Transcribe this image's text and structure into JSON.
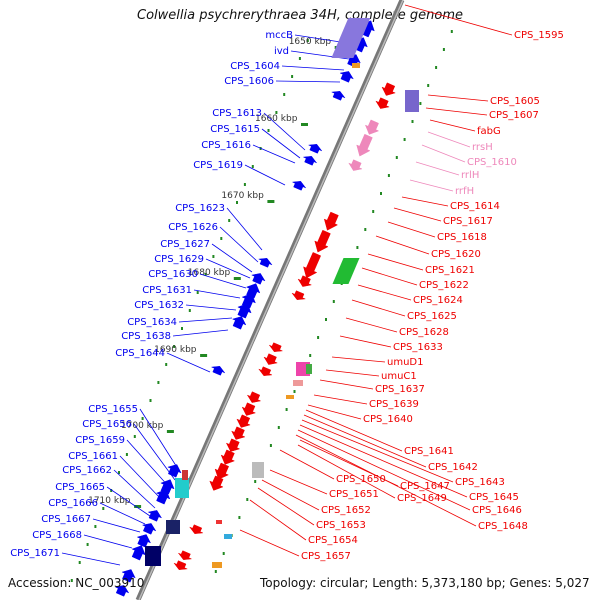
{
  "title": "Colwellia psychrerythraea 34H, complete genome",
  "accession": "Accession: NC_003910",
  "summary": "Topology: circular; Length: 5,373,180 bp; Genes: 5,027",
  "colors": {
    "plus_strand": "#0000ee",
    "minus_strand": "#ee0000",
    "rna": "#ee88bb",
    "kbp_marker": "#228822",
    "backbone": "#888888"
  },
  "kbp_labels": [
    "1650 kbp",
    "1660 kbp",
    "1670 kbp",
    "1680 kbp",
    "1690 kbp",
    "1700 kbp",
    "1710 kbp"
  ],
  "left_genes": [
    "mccB",
    "ivd",
    "CPS_1604",
    "CPS_1606",
    "CPS_1613",
    "CPS_1615",
    "CPS_1616",
    "CPS_1619",
    "CPS_1623",
    "CPS_1626",
    "CPS_1627",
    "CPS_1629",
    "CPS_1630",
    "CPS_1631",
    "CPS_1632",
    "CPS_1634",
    "CPS_1638",
    "CPS_1644",
    "CPS_1655",
    "CPS_1656",
    "CPS_1659",
    "CPS_1661",
    "CPS_1662",
    "CPS_1665",
    "CPS_1666",
    "CPS_1667",
    "CPS_1668",
    "CPS_1671"
  ],
  "right_genes": [
    {
      "name": "CPS_1595",
      "rna": false
    },
    {
      "name": "CPS_1605",
      "rna": false
    },
    {
      "name": "CPS_1607",
      "rna": false
    },
    {
      "name": "fabG",
      "rna": false
    },
    {
      "name": "rrsH",
      "rna": true
    },
    {
      "name": "CPS_1610",
      "rna": true
    },
    {
      "name": "rrlH",
      "rna": true
    },
    {
      "name": "rrfH",
      "rna": true
    },
    {
      "name": "CPS_1614",
      "rna": false
    },
    {
      "name": "CPS_1617",
      "rna": false
    },
    {
      "name": "CPS_1618",
      "rna": false
    },
    {
      "name": "CPS_1620",
      "rna": false
    },
    {
      "name": "CPS_1621",
      "rna": false
    },
    {
      "name": "CPS_1622",
      "rna": false
    },
    {
      "name": "CPS_1624",
      "rna": false
    },
    {
      "name": "CPS_1625",
      "rna": false
    },
    {
      "name": "CPS_1628",
      "rna": false
    },
    {
      "name": "CPS_1633",
      "rna": false
    },
    {
      "name": "umuD1",
      "rna": false
    },
    {
      "name": "umuC1",
      "rna": false
    },
    {
      "name": "CPS_1637",
      "rna": false
    },
    {
      "name": "CPS_1639",
      "rna": false
    },
    {
      "name": "CPS_1640",
      "rna": false
    },
    {
      "name": "CPS_1641",
      "rna": false
    },
    {
      "name": "CPS_1642",
      "rna": false
    },
    {
      "name": "CPS_1643",
      "rna": false
    },
    {
      "name": "CPS_1645",
      "rna": false
    },
    {
      "name": "CPS_1646",
      "rna": false
    },
    {
      "name": "CPS_1648",
      "rna": false
    },
    {
      "name": "CPS_1647",
      "rna": false
    },
    {
      "name": "CPS_1649",
      "rna": false
    },
    {
      "name": "CPS_1650",
      "rna": false
    },
    {
      "name": "CPS_1651",
      "rna": false
    },
    {
      "name": "CPS_1652",
      "rna": false
    },
    {
      "name": "CPS_1653",
      "rna": false
    },
    {
      "name": "CPS_1654",
      "rna": false
    },
    {
      "name": "CPS_1657",
      "rna": false
    }
  ]
}
